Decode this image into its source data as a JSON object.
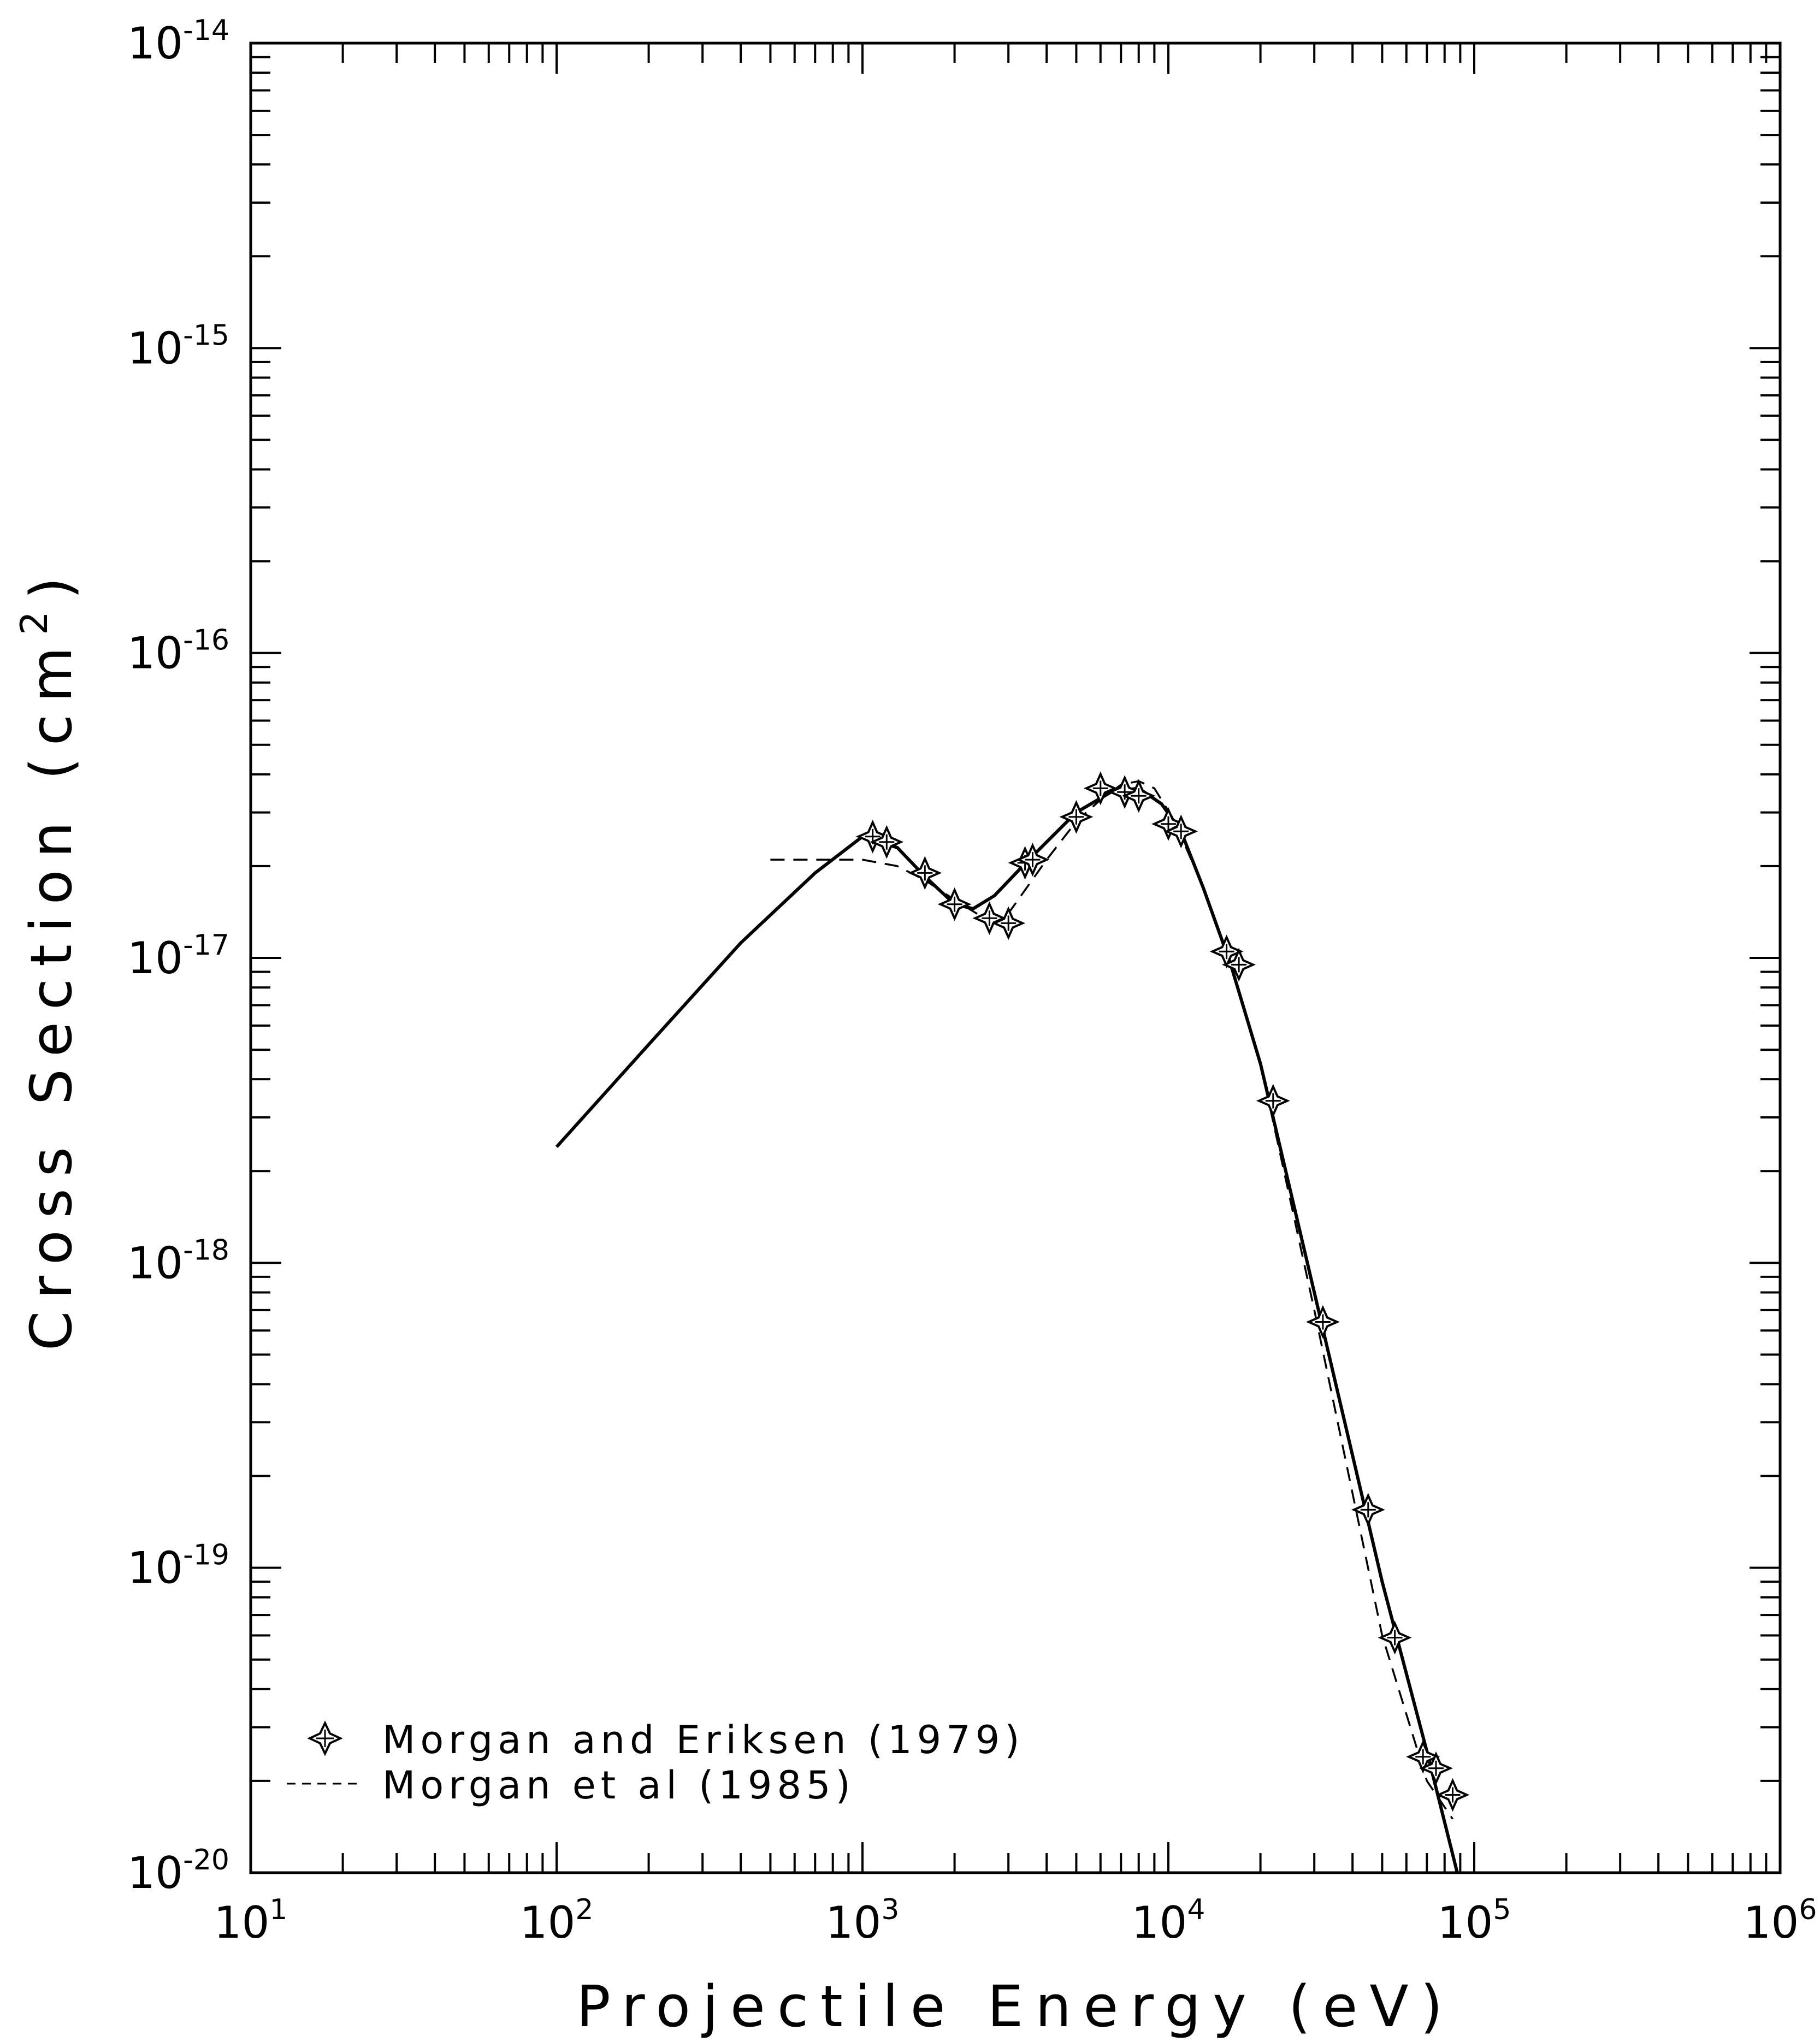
{
  "chart_data": {
    "type": "line",
    "xlabel": "Projectile Energy (eV)",
    "ylabel": "Cross Section (cm",
    "ylabel_sup": "2",
    "ylabel_close": ")",
    "xscale": "log",
    "yscale": "log",
    "xlim": [
      10,
      1000000
    ],
    "ylim": [
      1e-20,
      1e-14
    ],
    "grid": false,
    "legend_position": "bottom-left",
    "x_tick_labels": [
      {
        "base": "10",
        "exp": "1"
      },
      {
        "base": "10",
        "exp": "2"
      },
      {
        "base": "10",
        "exp": "3"
      },
      {
        "base": "10",
        "exp": "4"
      },
      {
        "base": "10",
        "exp": "5"
      },
      {
        "base": "10",
        "exp": "6"
      }
    ],
    "y_tick_labels": [
      {
        "base": "10",
        "exp": "-20"
      },
      {
        "base": "10",
        "exp": "-19"
      },
      {
        "base": "10",
        "exp": "-18"
      },
      {
        "base": "10",
        "exp": "-17"
      },
      {
        "base": "10",
        "exp": "-16"
      },
      {
        "base": "10",
        "exp": "-15"
      },
      {
        "base": "10",
        "exp": "-14"
      }
    ],
    "series": [
      {
        "style": "solid",
        "x": [
          100,
          200,
          400,
          700,
          1000,
          1300,
          1600,
          2000,
          2300,
          2700,
          3500,
          5000,
          6500,
          8000,
          9500,
          11000,
          13000,
          16000,
          20000,
          30000,
          50000,
          70000,
          88000
        ],
        "y": [
          2.4e-18,
          5.2e-18,
          1.12e-17,
          1.9e-17,
          2.5e-17,
          2.3e-17,
          1.85e-17,
          1.5e-17,
          1.45e-17,
          1.6e-17,
          2.1e-17,
          3e-17,
          3.5e-17,
          3.6e-17,
          3.2e-17,
          2.6e-17,
          1.7e-17,
          9.5e-18,
          4.5e-18,
          8e-19,
          9e-20,
          2.5e-20,
          1e-20
        ]
      },
      {
        "name": "Morgan et al (1985)",
        "style": "dashed",
        "x": [
          500,
          700,
          1000,
          1300,
          1600,
          2000,
          2500,
          3000,
          4000,
          5000,
          6000,
          7000,
          8000,
          9000,
          10500,
          13000,
          16000,
          20000,
          30000,
          50000,
          70000,
          85000
        ],
        "y": [
          2.1e-17,
          2.1e-17,
          2.1e-17,
          2e-17,
          1.8e-17,
          1.55e-17,
          1.35e-17,
          1.4e-17,
          2.1e-17,
          2.8e-17,
          3.3e-17,
          3.7e-17,
          3.8e-17,
          3.6e-17,
          2.8e-17,
          1.7e-17,
          9.5e-18,
          4.5e-18,
          7e-19,
          6e-20,
          2e-20,
          1.5e-20
        ]
      },
      {
        "name": "Morgan and Eriksen (1979)",
        "style": "markers",
        "x": [
          1080,
          1200,
          1600,
          2000,
          2600,
          3000,
          3400,
          3600,
          5000,
          6000,
          7200,
          8000,
          10000,
          11000,
          15500,
          17000,
          22000,
          32000,
          45000,
          55000,
          68000,
          75000,
          85000
        ],
        "y": [
          2.5e-17,
          2.4e-17,
          1.9e-17,
          1.5e-17,
          1.35e-17,
          1.3e-17,
          2.05e-17,
          2.1e-17,
          2.9e-17,
          3.6e-17,
          3.5e-17,
          3.4e-17,
          2.75e-17,
          2.6e-17,
          1.05e-17,
          9.5e-18,
          3.4e-18,
          6.4e-19,
          1.55e-19,
          5.9e-20,
          2.4e-20,
          2.2e-20,
          1.8e-20
        ]
      }
    ],
    "legend": [
      {
        "label": "Morgan and Eriksen (1979)",
        "marker": "diamond"
      },
      {
        "label": "Morgan et al (1985)",
        "marker": "dashed"
      }
    ]
  }
}
